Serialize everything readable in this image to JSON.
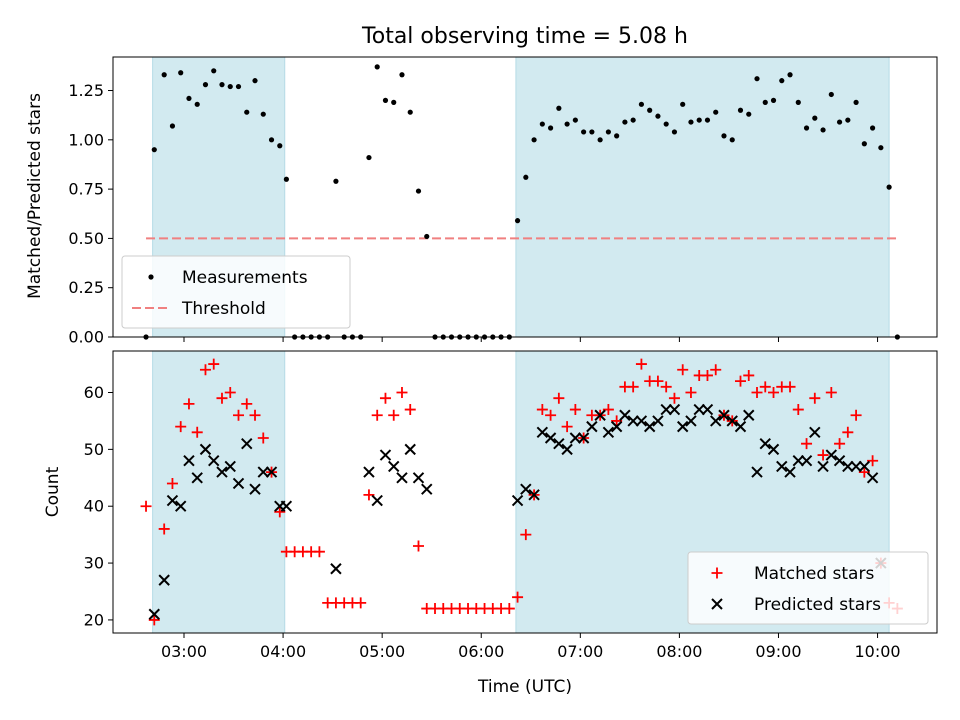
{
  "chart_data": [
    {
      "type": "scatter",
      "title": "Total observing time = 5.08 h",
      "ylabel": "Matched/Predicted stars",
      "xlim": [
        "02:17",
        "10:36"
      ],
      "ylim": [
        0,
        1.42
      ],
      "yticks": [
        "0.00",
        "0.25",
        "0.50",
        "0.75",
        "1.00",
        "1.25"
      ],
      "shaded_intervals": [
        [
          "02:41",
          "04:01"
        ],
        [
          "06:21",
          "10:07"
        ]
      ],
      "shade_color": "#d2eaf0",
      "threshold": {
        "name": "Threshold",
        "value": 0.5,
        "x_range": [
          "02:37",
          "10:12"
        ],
        "color": "#f08080"
      },
      "legend": {
        "placement": "lower-left",
        "entries": [
          "Measurements",
          "Threshold"
        ]
      },
      "series": [
        {
          "name": "Measurements",
          "marker": "dot",
          "color": "#000000",
          "points": [
            [
              "02:37",
              0.0
            ],
            [
              "02:42",
              0.95
            ],
            [
              "02:48",
              1.33
            ],
            [
              "02:53",
              1.07
            ],
            [
              "02:58",
              1.34
            ],
            [
              "03:03",
              1.21
            ],
            [
              "03:08",
              1.18
            ],
            [
              "03:13",
              1.28
            ],
            [
              "03:18",
              1.35
            ],
            [
              "03:23",
              1.28
            ],
            [
              "03:28",
              1.27
            ],
            [
              "03:33",
              1.27
            ],
            [
              "03:38",
              1.14
            ],
            [
              "03:43",
              1.3
            ],
            [
              "03:48",
              1.13
            ],
            [
              "03:53",
              1.0
            ],
            [
              "03:58",
              0.97
            ],
            [
              "04:02",
              0.8
            ],
            [
              "04:07",
              0.0
            ],
            [
              "04:12",
              0.0
            ],
            [
              "04:17",
              0.0
            ],
            [
              "04:22",
              0.0
            ],
            [
              "04:27",
              0.0
            ],
            [
              "04:32",
              0.79
            ],
            [
              "04:37",
              0.0
            ],
            [
              "04:42",
              0.0
            ],
            [
              "04:47",
              0.0
            ],
            [
              "04:52",
              0.91
            ],
            [
              "04:57",
              1.37
            ],
            [
              "05:02",
              1.2
            ],
            [
              "05:07",
              1.19
            ],
            [
              "05:12",
              1.33
            ],
            [
              "05:17",
              1.14
            ],
            [
              "05:22",
              0.74
            ],
            [
              "05:27",
              0.51
            ],
            [
              "05:32",
              0.0
            ],
            [
              "05:37",
              0.0
            ],
            [
              "05:42",
              0.0
            ],
            [
              "05:47",
              0.0
            ],
            [
              "05:52",
              0.0
            ],
            [
              "05:57",
              0.0
            ],
            [
              "06:02",
              0.0
            ],
            [
              "06:07",
              0.0
            ],
            [
              "06:12",
              0.0
            ],
            [
              "06:17",
              0.0
            ],
            [
              "06:22",
              0.59
            ],
            [
              "06:27",
              0.81
            ],
            [
              "06:32",
              1.0
            ],
            [
              "06:37",
              1.08
            ],
            [
              "06:42",
              1.06
            ],
            [
              "06:47",
              1.16
            ],
            [
              "06:52",
              1.08
            ],
            [
              "06:57",
              1.1
            ],
            [
              "07:02",
              1.04
            ],
            [
              "07:07",
              1.04
            ],
            [
              "07:12",
              1.0
            ],
            [
              "07:17",
              1.04
            ],
            [
              "07:22",
              1.02
            ],
            [
              "07:27",
              1.09
            ],
            [
              "07:32",
              1.1
            ],
            [
              "07:37",
              1.18
            ],
            [
              "07:42",
              1.15
            ],
            [
              "07:47",
              1.12
            ],
            [
              "07:52",
              1.08
            ],
            [
              "07:57",
              1.04
            ],
            [
              "08:02",
              1.18
            ],
            [
              "08:07",
              1.09
            ],
            [
              "08:12",
              1.1
            ],
            [
              "08:17",
              1.1
            ],
            [
              "08:22",
              1.14
            ],
            [
              "08:27",
              1.02
            ],
            [
              "08:32",
              1.0
            ],
            [
              "08:37",
              1.15
            ],
            [
              "08:42",
              1.13
            ],
            [
              "08:47",
              1.31
            ],
            [
              "08:52",
              1.19
            ],
            [
              "08:57",
              1.2
            ],
            [
              "09:02",
              1.3
            ],
            [
              "09:07",
              1.33
            ],
            [
              "09:12",
              1.19
            ],
            [
              "09:17",
              1.06
            ],
            [
              "09:22",
              1.11
            ],
            [
              "09:27",
              1.05
            ],
            [
              "09:32",
              1.23
            ],
            [
              "09:37",
              1.09
            ],
            [
              "09:42",
              1.1
            ],
            [
              "09:47",
              1.19
            ],
            [
              "09:52",
              0.98
            ],
            [
              "09:57",
              1.06
            ],
            [
              "10:02",
              0.96
            ],
            [
              "10:07",
              0.76
            ],
            [
              "10:12",
              0.0
            ]
          ]
        }
      ]
    },
    {
      "type": "scatter",
      "xlabel": "Time (UTC)",
      "ylabel": "Count",
      "xlim": [
        "02:17",
        "10:36"
      ],
      "ylim": [
        17.7,
        67.3
      ],
      "xticks": [
        "03:00",
        "04:00",
        "05:00",
        "06:00",
        "07:00",
        "08:00",
        "09:00",
        "10:00"
      ],
      "yticks": [
        "20",
        "30",
        "40",
        "50",
        "60"
      ],
      "shaded_intervals": [
        [
          "02:41",
          "04:01"
        ],
        [
          "06:21",
          "10:07"
        ]
      ],
      "shade_color": "#d2eaf0",
      "legend": {
        "placement": "lower-right",
        "entries": [
          "Matched stars",
          "Predicted stars"
        ]
      },
      "series": [
        {
          "name": "Matched stars",
          "marker": "plus",
          "color": "#ff0000",
          "points": [
            [
              "02:37",
              40
            ],
            [
              "02:42",
              20
            ],
            [
              "02:48",
              36
            ],
            [
              "02:53",
              44
            ],
            [
              "02:58",
              54
            ],
            [
              "03:03",
              58
            ],
            [
              "03:08",
              53
            ],
            [
              "03:13",
              64
            ],
            [
              "03:18",
              65
            ],
            [
              "03:23",
              59
            ],
            [
              "03:28",
              60
            ],
            [
              "03:33",
              56
            ],
            [
              "03:38",
              58
            ],
            [
              "03:43",
              56
            ],
            [
              "03:48",
              52
            ],
            [
              "03:53",
              46
            ],
            [
              "03:58",
              39
            ],
            [
              "04:02",
              32
            ],
            [
              "04:07",
              32
            ],
            [
              "04:12",
              32
            ],
            [
              "04:17",
              32
            ],
            [
              "04:22",
              32
            ],
            [
              "04:27",
              23
            ],
            [
              "04:32",
              23
            ],
            [
              "04:37",
              23
            ],
            [
              "04:42",
              23
            ],
            [
              "04:47",
              23
            ],
            [
              "04:52",
              42
            ],
            [
              "04:57",
              56
            ],
            [
              "05:02",
              59
            ],
            [
              "05:07",
              56
            ],
            [
              "05:12",
              60
            ],
            [
              "05:17",
              57
            ],
            [
              "05:22",
              33
            ],
            [
              "05:27",
              22
            ],
            [
              "05:32",
              22
            ],
            [
              "05:37",
              22
            ],
            [
              "05:42",
              22
            ],
            [
              "05:47",
              22
            ],
            [
              "05:52",
              22
            ],
            [
              "05:57",
              22
            ],
            [
              "06:02",
              22
            ],
            [
              "06:07",
              22
            ],
            [
              "06:12",
              22
            ],
            [
              "06:17",
              22
            ],
            [
              "06:22",
              24
            ],
            [
              "06:27",
              35
            ],
            [
              "06:32",
              42
            ],
            [
              "06:37",
              57
            ],
            [
              "06:42",
              56
            ],
            [
              "06:47",
              59
            ],
            [
              "06:52",
              54
            ],
            [
              "06:57",
              57
            ],
            [
              "07:02",
              52
            ],
            [
              "07:07",
              56
            ],
            [
              "07:12",
              56
            ],
            [
              "07:17",
              57
            ],
            [
              "07:22",
              55
            ],
            [
              "07:27",
              61
            ],
            [
              "07:32",
              61
            ],
            [
              "07:37",
              65
            ],
            [
              "07:42",
              62
            ],
            [
              "07:47",
              62
            ],
            [
              "07:52",
              61
            ],
            [
              "07:57",
              59
            ],
            [
              "08:02",
              64
            ],
            [
              "08:07",
              60
            ],
            [
              "08:12",
              63
            ],
            [
              "08:17",
              63
            ],
            [
              "08:22",
              64
            ],
            [
              "08:27",
              56
            ],
            [
              "08:32",
              55
            ],
            [
              "08:37",
              62
            ],
            [
              "08:42",
              63
            ],
            [
              "08:47",
              60
            ],
            [
              "08:52",
              61
            ],
            [
              "08:57",
              60
            ],
            [
              "09:02",
              61
            ],
            [
              "09:07",
              61
            ],
            [
              "09:12",
              57
            ],
            [
              "09:17",
              51
            ],
            [
              "09:22",
              59
            ],
            [
              "09:27",
              49
            ],
            [
              "09:32",
              60
            ],
            [
              "09:37",
              51
            ],
            [
              "09:42",
              53
            ],
            [
              "09:47",
              56
            ],
            [
              "09:52",
              46
            ],
            [
              "09:57",
              48
            ],
            [
              "10:02",
              30
            ],
            [
              "10:07",
              23
            ],
            [
              "10:12",
              22
            ]
          ]
        },
        {
          "name": "Predicted stars",
          "marker": "x",
          "color": "#000000",
          "points": [
            [
              "02:42",
              21
            ],
            [
              "02:48",
              27
            ],
            [
              "02:53",
              41
            ],
            [
              "02:58",
              40
            ],
            [
              "03:03",
              48
            ],
            [
              "03:08",
              45
            ],
            [
              "03:13",
              50
            ],
            [
              "03:18",
              48
            ],
            [
              "03:23",
              46
            ],
            [
              "03:28",
              47
            ],
            [
              "03:33",
              44
            ],
            [
              "03:38",
              51
            ],
            [
              "03:43",
              43
            ],
            [
              "03:48",
              46
            ],
            [
              "03:53",
              46
            ],
            [
              "03:58",
              40
            ],
            [
              "04:02",
              40
            ],
            [
              "04:32",
              29
            ],
            [
              "04:52",
              46
            ],
            [
              "04:57",
              41
            ],
            [
              "05:02",
              49
            ],
            [
              "05:07",
              47
            ],
            [
              "05:12",
              45
            ],
            [
              "05:17",
              50
            ],
            [
              "05:22",
              45
            ],
            [
              "05:27",
              43
            ],
            [
              "06:22",
              41
            ],
            [
              "06:27",
              43
            ],
            [
              "06:32",
              42
            ],
            [
              "06:37",
              53
            ],
            [
              "06:42",
              52
            ],
            [
              "06:47",
              51
            ],
            [
              "06:52",
              50
            ],
            [
              "06:57",
              52
            ],
            [
              "07:02",
              52
            ],
            [
              "07:07",
              54
            ],
            [
              "07:12",
              56
            ],
            [
              "07:17",
              53
            ],
            [
              "07:22",
              54
            ],
            [
              "07:27",
              56
            ],
            [
              "07:32",
              55
            ],
            [
              "07:37",
              55
            ],
            [
              "07:42",
              54
            ],
            [
              "07:47",
              55
            ],
            [
              "07:52",
              57
            ],
            [
              "07:57",
              57
            ],
            [
              "08:02",
              54
            ],
            [
              "08:07",
              55
            ],
            [
              "08:12",
              57
            ],
            [
              "08:17",
              57
            ],
            [
              "08:22",
              55
            ],
            [
              "08:27",
              56
            ],
            [
              "08:32",
              55
            ],
            [
              "08:37",
              54
            ],
            [
              "08:42",
              56
            ],
            [
              "08:47",
              46
            ],
            [
              "08:52",
              51
            ],
            [
              "08:57",
              50
            ],
            [
              "09:02",
              47
            ],
            [
              "09:07",
              46
            ],
            [
              "09:12",
              48
            ],
            [
              "09:17",
              48
            ],
            [
              "09:22",
              53
            ],
            [
              "09:27",
              47
            ],
            [
              "09:32",
              49
            ],
            [
              "09:37",
              48
            ],
            [
              "09:42",
              47
            ],
            [
              "09:47",
              47
            ],
            [
              "09:52",
              47
            ],
            [
              "09:57",
              45
            ],
            [
              "10:02",
              30
            ]
          ]
        }
      ]
    }
  ]
}
